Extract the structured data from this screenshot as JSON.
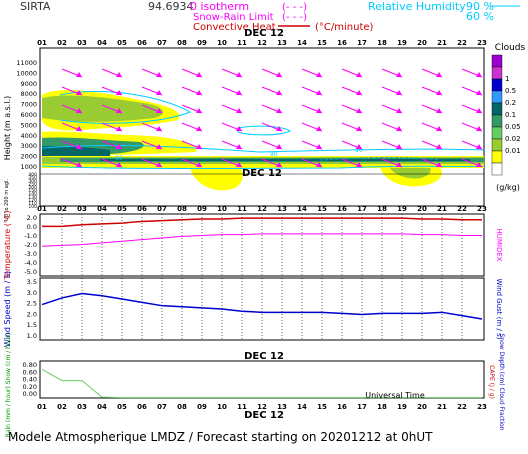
{
  "header": {
    "station": "SIRTA",
    "coords": "94.6934",
    "isotherm_label": "0 isotherm",
    "isotherm_key": "(- - -)",
    "snow_rain_label": "Snow-Rain Limit",
    "snow_rain_key": "(- - -)",
    "convective_label": "Convective Heat.",
    "convective_unit": "(°C/minute)",
    "rh_label": "Relative Humidity",
    "rh_90": "90 %",
    "rh_60": "60 %"
  },
  "time": {
    "hours": [
      "01",
      "02",
      "03",
      "04",
      "05",
      "06",
      "07",
      "08",
      "09",
      "10",
      "11",
      "12",
      "13",
      "14",
      "15",
      "16",
      "17",
      "18",
      "19",
      "20",
      "21",
      "22",
      "23"
    ],
    "date_label": "DEC 12",
    "universal_time": "Universal Time"
  },
  "panel_cloud": {
    "ylabel": "Height (m a.s.l.)",
    "ylabel_low": "Up to 200 m agl.",
    "yticks_upper": [
      "11000",
      "10000",
      "9000",
      "8000",
      "7000",
      "6000",
      "5000",
      "4000",
      "3000",
      "2000",
      "1000"
    ],
    "yticks_lower": [
      "400",
      "350",
      "300",
      "250",
      "200",
      "150",
      "140",
      "130",
      "120",
      "110",
      "100"
    ],
    "legend_title": "Clouds",
    "legend_ticks": [
      "1",
      "0.5",
      "0.2",
      "0.1",
      "0.05",
      "0.02",
      "0.01"
    ],
    "legend_unit": "(g/kg)",
    "legend_colors": [
      "#9900cc",
      "#cc33cc",
      "#0000cc",
      "#3399ff",
      "#006666",
      "#339966",
      "#66cc66",
      "#99cc33",
      "#ffff00",
      "#ffffff"
    ],
    "rh_contour_labels": [
      "90",
      "90",
      "60"
    ]
  },
  "panel_temp": {
    "ylabel": "Temperature (°C)",
    "ylabel_right": "HUMIDEX",
    "yticks": [
      "2.0",
      "0.0",
      "-1.0",
      "-2.0",
      "-3.0",
      "-4.0",
      "-5.0"
    ]
  },
  "panel_wind": {
    "ylabel": "Wind Speed (m / s)",
    "ylabel_right": "Wind Gust (m / s)",
    "yticks": [
      "3.5",
      "3.0",
      "2.5",
      "2.0",
      "1.5",
      "1.0"
    ]
  },
  "panel_rain": {
    "ylabel": "Rain (mm / hour) Snow (cm / hour)",
    "ylabel_right1": "CAPE (J / g)",
    "ylabel_right2": "Snow Depth (cm) Cloud Fraction",
    "yticks": [
      "0.80",
      "0.60",
      "0.40",
      "0.20",
      "0.00"
    ]
  },
  "footer": {
    "caption": "Modele Atmospherique LMDZ / Forecast starting on 20201212 at 0hUT"
  },
  "colors": {
    "magenta": "#ff00ff",
    "red": "#cc0000",
    "cyan": "#00ccff",
    "blue": "#0000cc",
    "light_green": "#66cc66"
  },
  "chart_data": [
    {
      "type": "line",
      "title": "Temperature (°C)",
      "x": [
        "01",
        "02",
        "03",
        "04",
        "05",
        "06",
        "07",
        "08",
        "09",
        "10",
        "11",
        "12",
        "13",
        "14",
        "15",
        "16",
        "17",
        "18",
        "19",
        "20",
        "21",
        "22",
        "23"
      ],
      "ylim": [
        -5,
        2.5
      ],
      "series": [
        {
          "name": "Temperature",
          "values": [
            1.0,
            1.0,
            1.2,
            1.3,
            1.4,
            1.6,
            1.7,
            1.8,
            1.9,
            1.9,
            2.0,
            2.0,
            2.0,
            2.0,
            2.0,
            2.0,
            2.0,
            2.0,
            2.0,
            1.9,
            1.9,
            1.8,
            1.8
          ]
        },
        {
          "name": "HUMIDEX",
          "values": [
            -1.4,
            -1.3,
            -1.2,
            -1.0,
            -0.8,
            -0.6,
            -0.4,
            -0.2,
            -0.1,
            0.0,
            0.0,
            0.1,
            0.1,
            0.1,
            0.1,
            0.1,
            0.1,
            0.1,
            0.1,
            0.0,
            0.0,
            -0.1,
            -0.1
          ]
        }
      ]
    },
    {
      "type": "line",
      "title": "Wind Speed (m / s)",
      "x": [
        "01",
        "02",
        "03",
        "04",
        "05",
        "06",
        "07",
        "08",
        "09",
        "10",
        "11",
        "12",
        "13",
        "14",
        "15",
        "16",
        "17",
        "18",
        "19",
        "20",
        "21",
        "22",
        "23"
      ],
      "ylim": [
        1.0,
        3.8
      ],
      "series": [
        {
          "name": "Wind Speed",
          "values": [
            2.6,
            2.9,
            3.1,
            3.0,
            2.85,
            2.7,
            2.55,
            2.5,
            2.45,
            2.4,
            2.3,
            2.25,
            2.25,
            2.25,
            2.25,
            2.2,
            2.15,
            2.2,
            2.2,
            2.2,
            2.25,
            2.1,
            1.95
          ]
        }
      ]
    },
    {
      "type": "line",
      "title": "Rain (mm / hour)",
      "x": [
        "01",
        "02",
        "03",
        "04",
        "05",
        "06",
        "07",
        "08",
        "09",
        "10",
        "11",
        "12",
        "13",
        "14",
        "15",
        "16",
        "17",
        "18",
        "19",
        "20",
        "21",
        "22",
        "23"
      ],
      "ylim": [
        0,
        0.85
      ],
      "series": [
        {
          "name": "Cloud Fraction",
          "values": [
            0.66,
            0.4,
            0.4,
            0.02,
            0.01,
            0.01,
            0.01,
            0.01,
            0.01,
            0.01,
            0.01,
            0.01,
            0.01,
            0.01,
            0.01,
            0.01,
            0.01,
            0.01,
            0.01,
            0.01,
            0.01,
            0.01,
            0.01
          ]
        }
      ]
    }
  ]
}
